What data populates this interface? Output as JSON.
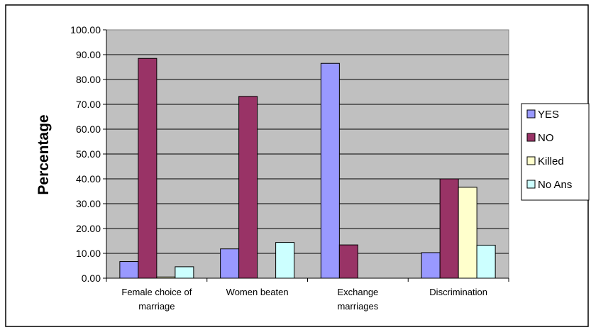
{
  "chart_data": {
    "type": "bar",
    "title": "",
    "xlabel": "",
    "ylabel": "Percentage",
    "ylim": [
      0,
      100
    ],
    "yticks": [
      "0.00",
      "10.00",
      "20.00",
      "30.00",
      "40.00",
      "50.00",
      "60.00",
      "70.00",
      "80.00",
      "90.00",
      "100.00"
    ],
    "categories": [
      [
        "Female choice of",
        "marriage"
      ],
      [
        "Women beaten"
      ],
      [
        "Exchange",
        "marriages"
      ],
      [
        "Discrimination"
      ]
    ],
    "series": [
      {
        "name": "YES",
        "color": "#9999ff",
        "values": [
          6.7,
          11.8,
          86.5,
          10.3
        ]
      },
      {
        "name": "NO",
        "color": "#993366",
        "values": [
          88.5,
          73.2,
          13.4,
          40.0
        ]
      },
      {
        "name": "Killed",
        "color": "#ffffcc",
        "values": [
          0.5,
          0,
          0,
          36.6
        ]
      },
      {
        "name": "No Ans",
        "color": "#ccffff",
        "values": [
          4.6,
          14.4,
          0,
          13.3
        ]
      }
    ],
    "grid": true,
    "plot_background": "#c0c0c0",
    "legend_position": "right"
  }
}
